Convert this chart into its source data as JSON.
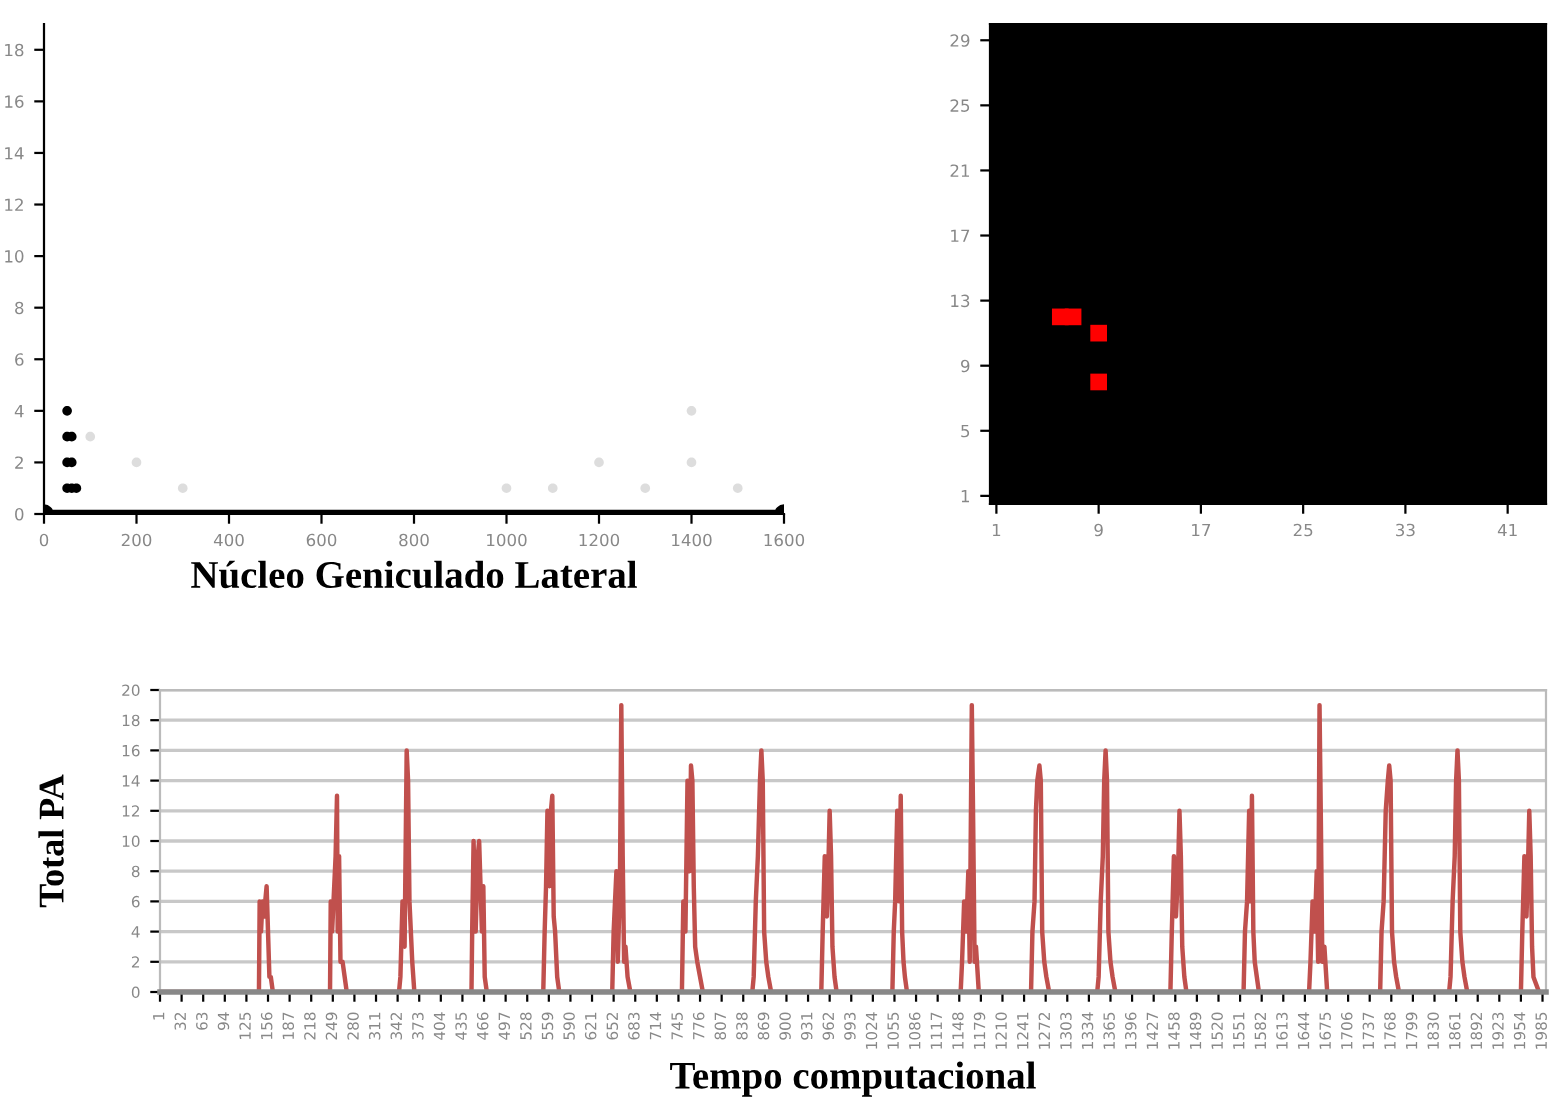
{
  "chart_data": [
    {
      "type": "scatter",
      "xlabel": "Núcleo Geniculado Lateral",
      "xlim": [
        0,
        1600
      ],
      "xticks": [
        0,
        200,
        400,
        600,
        800,
        1000,
        1200,
        1400,
        1600
      ],
      "ylim": [
        0,
        19
      ],
      "yticks": [
        0,
        2,
        4,
        6,
        8,
        10,
        12,
        14,
        16,
        18
      ],
      "grid": false,
      "marker": "circle",
      "series": [
        {
          "color": "#000000",
          "x": [
            50,
            50,
            50,
            50,
            60,
            60,
            60,
            70
          ],
          "values": [
            1,
            2,
            3,
            4,
            1,
            2,
            3,
            1
          ]
        },
        {
          "color": "#dddddd",
          "x": [
            100,
            200,
            300,
            1000,
            1100,
            1200,
            1300,
            1400,
            1400,
            1500
          ],
          "values": [
            3,
            2,
            1,
            1,
            1,
            2,
            1,
            4,
            2,
            1
          ]
        },
        {
          "type": "line",
          "color": "#000000",
          "x": [
            0,
            1600
          ],
          "values": [
            0,
            0
          ]
        }
      ]
    },
    {
      "type": "scatter",
      "xlim": [
        0.5,
        44
      ],
      "xticks": [
        1,
        9,
        17,
        25,
        33,
        41
      ],
      "ylim": [
        0.5,
        30
      ],
      "yticks": [
        1,
        5,
        9,
        13,
        17,
        21,
        25,
        29
      ],
      "grid": false,
      "marker": "square",
      "series": [
        {
          "color": "#ff0000",
          "x": [
            6,
            7,
            9,
            9
          ],
          "values": [
            12,
            12,
            11,
            8
          ]
        }
      ]
    },
    {
      "type": "line",
      "xlabel": "Tempo computacional",
      "ylabel": "Total PA",
      "xlim": [
        1,
        1990
      ],
      "ylim": [
        0,
        20
      ],
      "yticks": [
        0,
        2,
        4,
        6,
        8,
        10,
        12,
        14,
        16,
        18,
        20
      ],
      "grid": "y",
      "marker": "none",
      "xticks": [
        1,
        32,
        63,
        94,
        125,
        156,
        187,
        218,
        249,
        280,
        311,
        342,
        373,
        404,
        435,
        466,
        497,
        528,
        559,
        590,
        621,
        652,
        683,
        714,
        745,
        776,
        807,
        838,
        869,
        900,
        931,
        962,
        993,
        1024,
        1055,
        1086,
        1117,
        1148,
        1179,
        1210,
        1241,
        1272,
        1303,
        1334,
        1365,
        1396,
        1427,
        1458,
        1489,
        1520,
        1551,
        1582,
        1613,
        1644,
        1675,
        1706,
        1737,
        1768,
        1799,
        1830,
        1861,
        1892,
        1923,
        1954,
        1985
      ],
      "series": [
        {
          "color": "#c0504d",
          "x": [
            1,
            143,
            144,
            146,
            148,
            150,
            152,
            154,
            156,
            158,
            160,
            163,
            245,
            246,
            248,
            250,
            253,
            255,
            256,
            258,
            260,
            263,
            266,
            269,
            344,
            346,
            349,
            352,
            355,
            357,
            359,
            361,
            363,
            366,
            448,
            449,
            451,
            454,
            457,
            459,
            461,
            463,
            465,
            467,
            470,
            551,
            553,
            555,
            557,
            560,
            562,
            564,
            566,
            568,
            571,
            574,
            650,
            652,
            654,
            656,
            658,
            661,
            663,
            665,
            667,
            669,
            672,
            676,
            750,
            752,
            755,
            758,
            761,
            763,
            765,
            767,
            769,
            772,
            776,
            780,
            851,
            853,
            856,
            859,
            862,
            864,
            866,
            868,
            871,
            874,
            878,
            950,
            952,
            955,
            958,
            960,
            962,
            964,
            966,
            969,
            972,
            1052,
            1054,
            1056,
            1059,
            1062,
            1064,
            1066,
            1068,
            1070,
            1073,
            1150,
            1152,
            1155,
            1158,
            1161,
            1163,
            1166,
            1168,
            1170,
            1172,
            1176,
            1251,
            1253,
            1256,
            1258,
            1260,
            1263,
            1265,
            1267,
            1270,
            1273,
            1277,
            1346,
            1348,
            1351,
            1354,
            1356,
            1358,
            1360,
            1362,
            1365,
            1368,
            1372,
            1451,
            1453,
            1456,
            1459,
            1462,
            1464,
            1466,
            1468,
            1471,
            1474,
            1556,
            1558,
            1561,
            1564,
            1566,
            1568,
            1570,
            1572,
            1575,
            1578,
            1650,
            1652,
            1655,
            1658,
            1661,
            1663,
            1665,
            1667,
            1669,
            1672,
            1676,
            1752,
            1754,
            1757,
            1760,
            1763,
            1765,
            1767,
            1769,
            1772,
            1775,
            1779,
            1851,
            1853,
            1856,
            1859,
            1861,
            1863,
            1865,
            1867,
            1870,
            1873,
            1877,
            1954,
            1956,
            1959,
            1962,
            1964,
            1966,
            1968,
            1970,
            1972,
            1980
          ],
          "values": [
            0,
            0,
            6,
            4,
            6,
            5,
            6,
            7,
            4,
            1,
            1,
            0,
            0,
            6,
            4,
            6,
            9,
            13,
            4,
            9,
            2,
            2,
            1,
            0,
            0,
            1,
            6,
            3,
            16,
            14,
            6,
            4,
            2,
            0,
            0,
            4,
            10,
            4,
            9,
            10,
            7,
            4,
            7,
            1,
            0,
            0,
            4,
            7,
            12,
            7,
            12,
            13,
            5,
            4,
            1,
            0,
            0,
            4,
            6,
            8,
            2,
            7,
            19,
            9,
            2,
            3,
            1,
            0,
            0,
            6,
            4,
            14,
            8,
            15,
            14,
            7,
            3,
            2,
            1,
            0,
            0,
            1,
            6,
            9,
            14,
            16,
            14,
            4,
            2,
            1,
            0,
            0,
            4,
            9,
            5,
            8,
            12,
            9,
            3,
            1,
            0,
            0,
            4,
            6,
            12,
            6,
            13,
            4,
            2,
            1,
            0,
            0,
            2,
            6,
            4,
            8,
            2,
            19,
            11,
            2,
            3,
            0,
            0,
            4,
            6,
            12,
            14,
            15,
            14,
            4,
            2,
            1,
            0,
            0,
            1,
            6,
            9,
            14,
            16,
            14,
            4,
            2,
            1,
            0,
            0,
            4,
            9,
            5,
            8,
            12,
            9,
            3,
            1,
            0,
            0,
            4,
            6,
            12,
            6,
            13,
            4,
            2,
            1,
            0,
            0,
            2,
            6,
            4,
            8,
            2,
            19,
            11,
            2,
            3,
            0,
            0,
            4,
            6,
            12,
            14,
            15,
            14,
            4,
            2,
            1,
            0,
            0,
            1,
            6,
            9,
            14,
            16,
            14,
            4,
            2,
            1,
            0,
            0,
            4,
            9,
            5,
            8,
            12,
            9,
            3,
            1,
            0
          ]
        }
      ]
    }
  ]
}
